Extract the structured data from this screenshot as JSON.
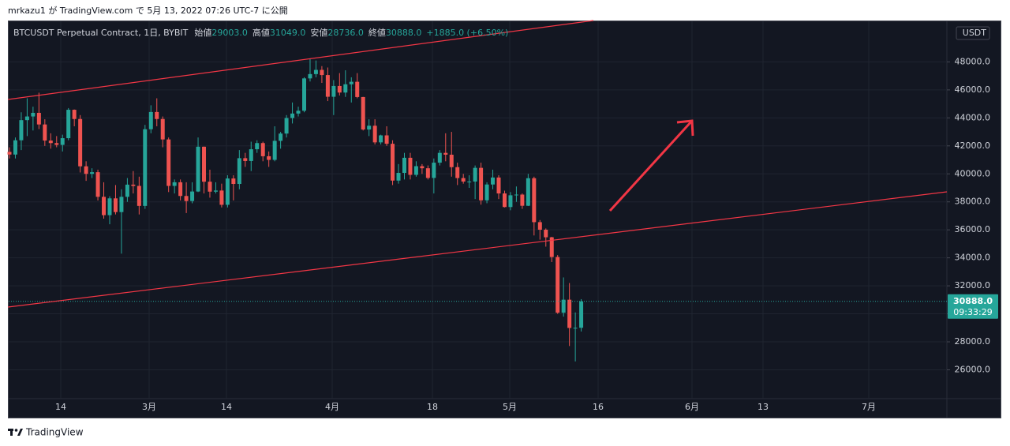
{
  "header": {
    "byline": "mrkazu1 が TradingView.com で 5月 13, 2022 07:26 UTC-7 に公開"
  },
  "footer": {
    "brand": "TradingView"
  },
  "chart_data": {
    "type": "candlestick",
    "legend": {
      "symbol": "BTCUSDT Perpetual Contract, 1日, BYBIT",
      "items": [
        {
          "label": "始値",
          "value": "29003.0"
        },
        {
          "label": "高値",
          "value": "31049.0"
        },
        {
          "label": "安値",
          "value": "28736.0"
        },
        {
          "label": "終値",
          "value": "30888.0"
        }
      ],
      "change": "+1885.0 (+6.50%)"
    },
    "currency": "USDT",
    "last_price": {
      "value": 30888,
      "label": "30888.0",
      "countdown": "09:33:29"
    },
    "up_color": "#26a69a",
    "down_color": "#ef5350",
    "grid": true,
    "ylim": [
      23940,
      50900
    ],
    "yticks": [
      {
        "value": 26000,
        "label": "26000.0"
      },
      {
        "value": 28000,
        "label": "28000.0"
      },
      {
        "value": 30000,
        "label": "30000.0"
      },
      {
        "value": 32000,
        "label": "32000.0"
      },
      {
        "value": 34000,
        "label": "34000.0"
      },
      {
        "value": 36000,
        "label": "36000.0"
      },
      {
        "value": 38000,
        "label": "38000.0"
      },
      {
        "value": 40000,
        "label": "40000.0"
      },
      {
        "value": 42000,
        "label": "42000.0"
      },
      {
        "value": 44000,
        "label": "44000.0"
      },
      {
        "value": 46000,
        "label": "46000.0"
      },
      {
        "value": 48000,
        "label": "48000.0"
      }
    ],
    "xtick_labels": [
      "14",
      "3月",
      "14",
      "4月",
      "18",
      "5月",
      "16",
      "6月",
      "13",
      "7月"
    ],
    "open": [
      41570,
      41380,
      42400,
      43840,
      44100,
      44360,
      43530,
      42380,
      42200,
      42070,
      42550,
      44580,
      43920,
      40540,
      40000,
      40120,
      38360,
      37050,
      38250,
      37270,
      38360,
      39230,
      39140,
      37710,
      43190,
      44420,
      43920,
      42460,
      39140,
      39400,
      38420,
      38060,
      38740,
      41940,
      39440,
      38730,
      38810,
      37790,
      39670,
      39280,
      41120,
      40920,
      41760,
      42200,
      41260,
      41000,
      42360,
      42880,
      43990,
      44310,
      44510,
      46820,
      47130,
      47430,
      47060,
      45510,
      46280,
      45810,
      46400,
      46580,
      45490,
      43170,
      43440,
      42250,
      42750,
      42150,
      39520,
      40070,
      41150,
      39930,
      40550,
      40400,
      39710,
      40800,
      41500,
      41370,
      40480,
      39700,
      39450,
      39450,
      40430,
      38110,
      39240,
      39740,
      38600,
      37630,
      38470,
      38520,
      37720,
      39690,
      36550,
      36010,
      35470,
      34060,
      30080,
      31010,
      28990,
      29003
    ],
    "high": [
      41900,
      42600,
      44400,
      45400,
      44800,
      45800,
      43900,
      42900,
      42700,
      42800,
      44700,
      44600,
      44200,
      40900,
      40400,
      40300,
      39400,
      38400,
      39200,
      38900,
      39700,
      40200,
      39800,
      43500,
      44900,
      45400,
      44100,
      42600,
      39600,
      39600,
      39400,
      39400,
      42600,
      41950,
      40300,
      39400,
      39300,
      39900,
      39900,
      41700,
      41500,
      42300,
      42400,
      42300,
      41600,
      43400,
      43000,
      44200,
      45100,
      44800,
      46900,
      48200,
      48100,
      47700,
      47600,
      46700,
      47200,
      47400,
      46900,
      47200,
      45500,
      43900,
      43900,
      42800,
      43400,
      42400,
      40700,
      41500,
      41500,
      40900,
      40700,
      40600,
      41100,
      41700,
      42900,
      43000,
      40800,
      40000,
      39900,
      40600,
      40800,
      39400,
      40300,
      39900,
      38800,
      38700,
      39100,
      38600,
      40000,
      39800,
      36700,
      36100,
      35500,
      34200,
      32600,
      32200,
      30100,
      31049
    ],
    "low": [
      41100,
      41100,
      41700,
      42700,
      43100,
      43200,
      42000,
      41800,
      41900,
      41600,
      42400,
      43400,
      40100,
      39500,
      39700,
      38100,
      36800,
      36400,
      37100,
      34300,
      38000,
      38600,
      37100,
      37500,
      42900,
      43400,
      41900,
      38700,
      38600,
      38100,
      37200,
      37900,
      38700,
      38600,
      38300,
      38600,
      37600,
      37600,
      38100,
      38900,
      40500,
      40200,
      41500,
      40900,
      40500,
      40900,
      41800,
      42600,
      43600,
      44100,
      44400,
      46600,
      46900,
      46500,
      45200,
      44200,
      45600,
      45500,
      45100,
      45400,
      43100,
      42700,
      42100,
      42100,
      42000,
      39200,
      39300,
      39600,
      39600,
      39800,
      40000,
      39600,
      38600,
      40600,
      40900,
      39800,
      39200,
      39300,
      39000,
      38200,
      37800,
      37900,
      38900,
      38200,
      37600,
      37400,
      38000,
      37500,
      37700,
      35600,
      35300,
      34800,
      33700,
      30000,
      29800,
      27700,
      26600,
      28736
    ],
    "close": [
      41380,
      42400,
      43840,
      44100,
      44360,
      43530,
      42380,
      42200,
      42070,
      42550,
      44580,
      43920,
      40540,
      40000,
      40120,
      38360,
      37050,
      38250,
      37270,
      38360,
      39230,
      39140,
      37710,
      43190,
      44420,
      43920,
      42460,
      39140,
      39400,
      38420,
      38060,
      38740,
      41940,
      39440,
      38730,
      38810,
      37790,
      39670,
      39280,
      41120,
      40920,
      41760,
      42200,
      41260,
      41000,
      42360,
      42880,
      43990,
      44310,
      44510,
      46820,
      47130,
      47430,
      47060,
      45510,
      46280,
      45810,
      46400,
      46580,
      45490,
      43170,
      43440,
      42250,
      42750,
      42150,
      39520,
      40070,
      41150,
      39930,
      40550,
      40400,
      39710,
      40800,
      41500,
      41370,
      40480,
      39700,
      39450,
      39450,
      40430,
      38110,
      39240,
      39740,
      38600,
      37630,
      38470,
      38520,
      37720,
      39690,
      36550,
      36010,
      35470,
      34060,
      30080,
      31010,
      28990,
      29003,
      30888
    ]
  }
}
